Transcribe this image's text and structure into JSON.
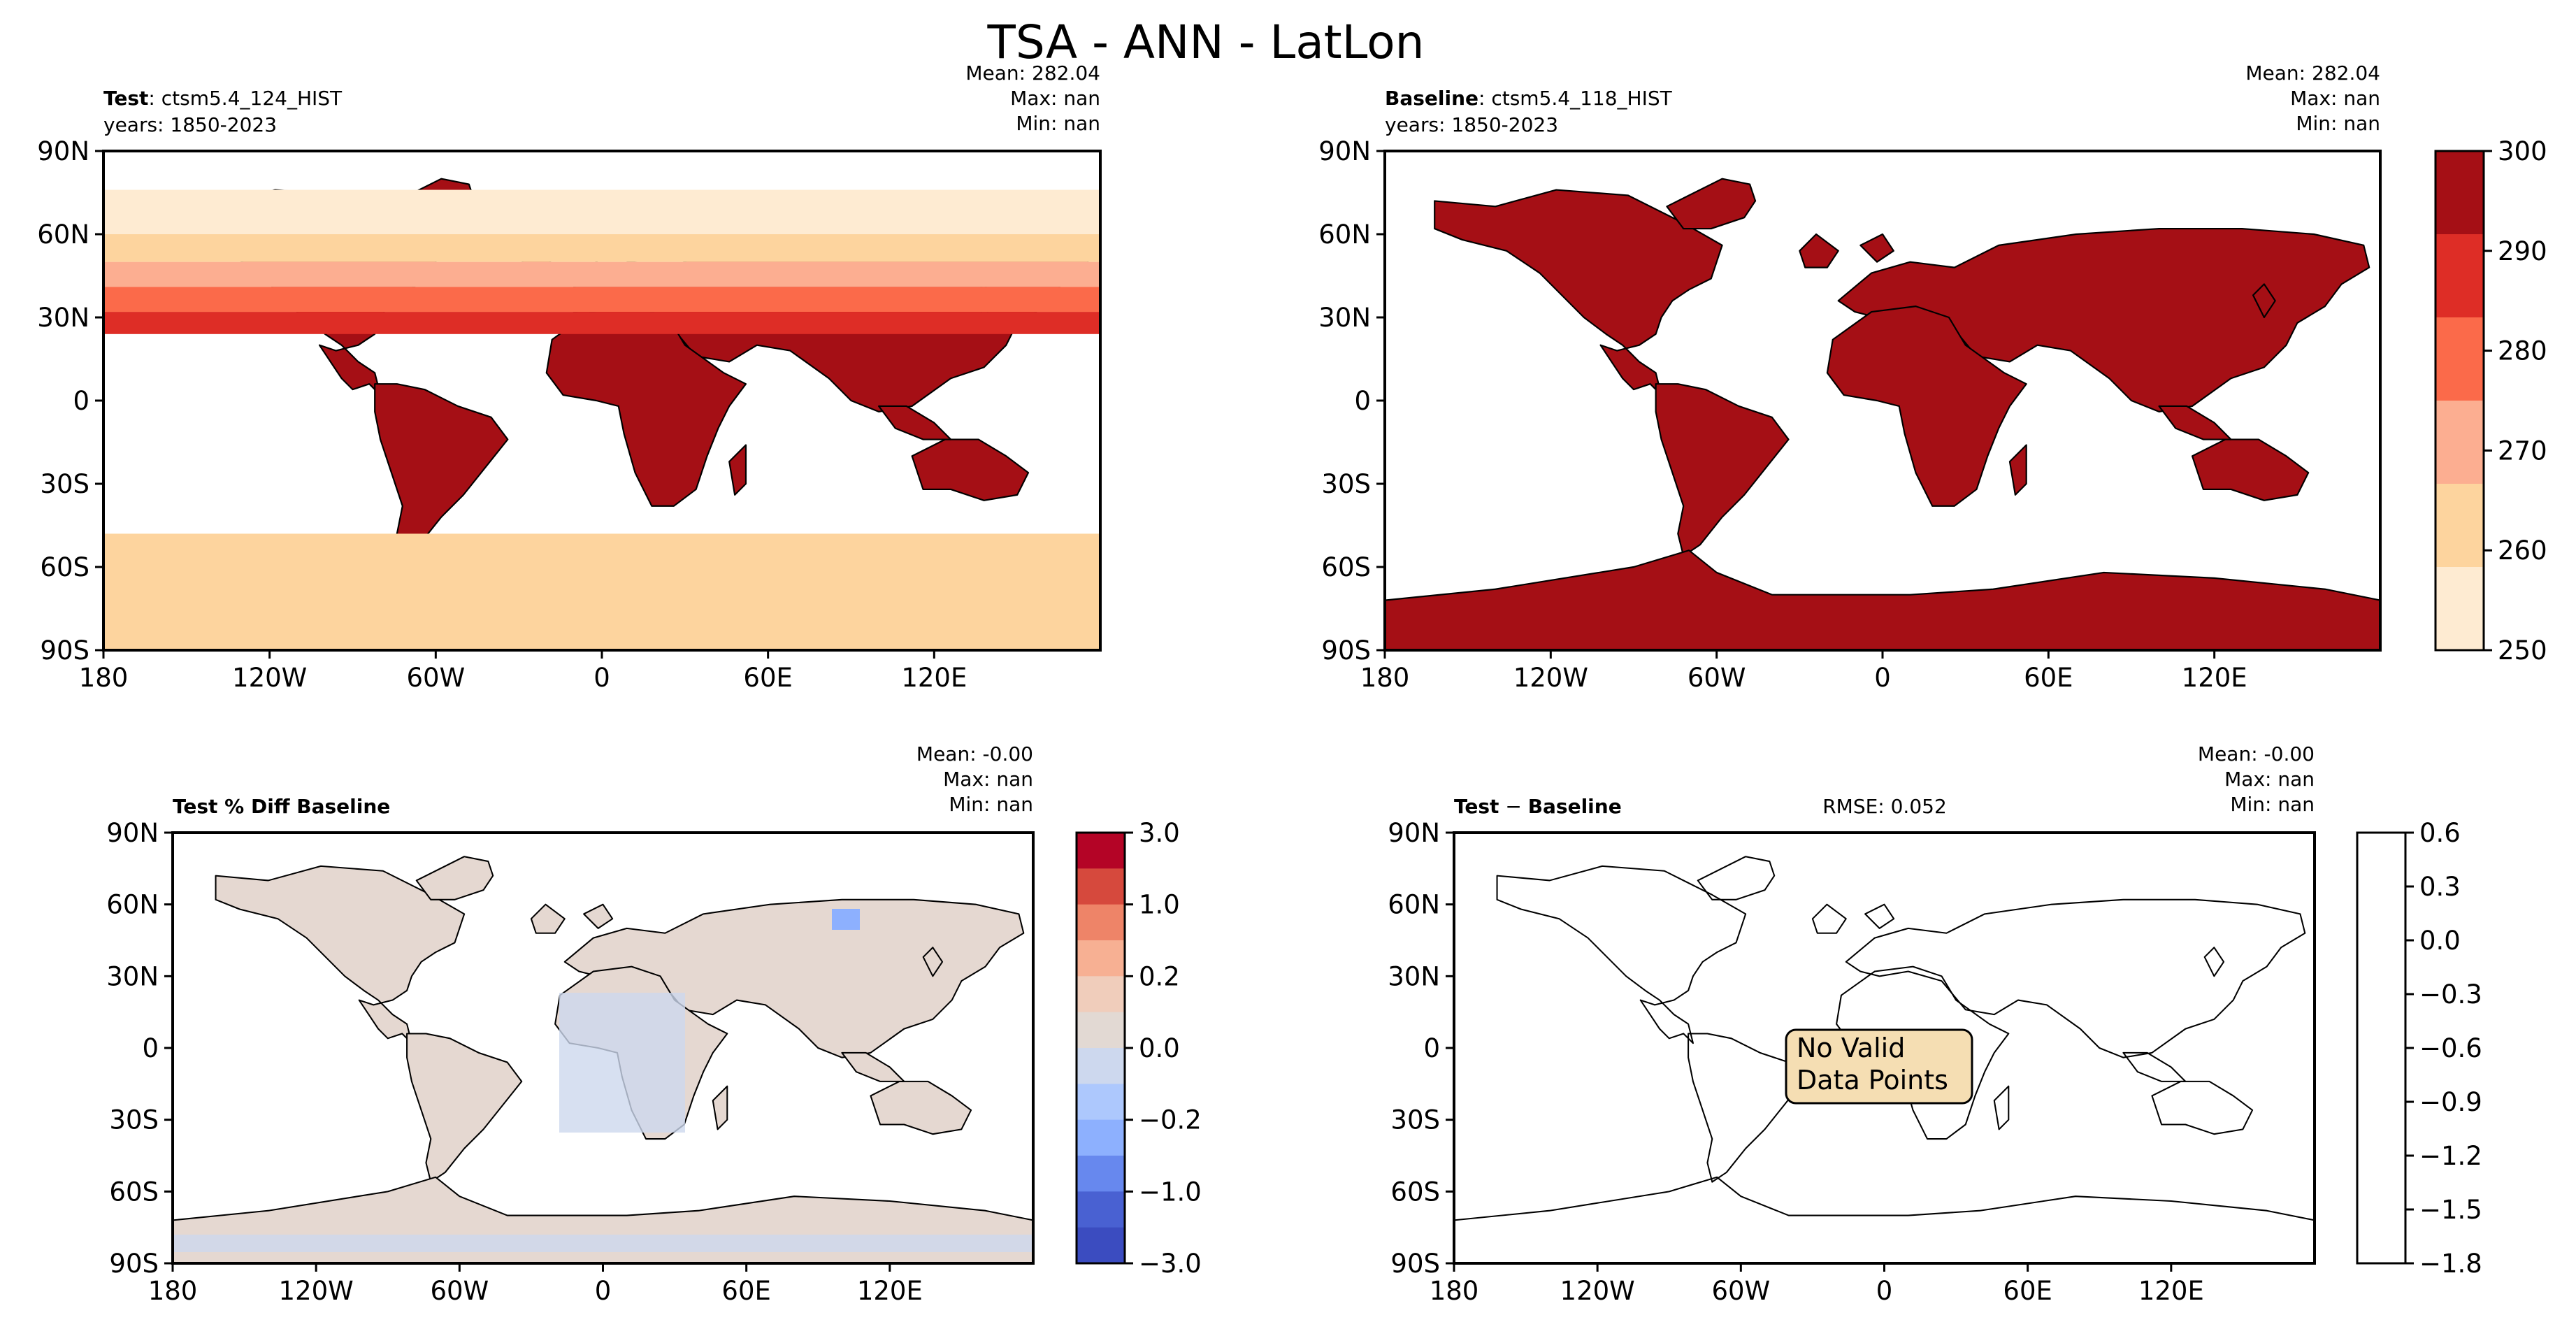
{
  "figure": {
    "suptitle": "TSA - ANN - LatLon"
  },
  "axes": {
    "lat_labels": [
      "90N",
      "60N",
      "30N",
      "0",
      "30S",
      "60S",
      "90S"
    ],
    "lon_labels": [
      "180",
      "120W",
      "60W",
      "0",
      "60E",
      "120E"
    ]
  },
  "panels": {
    "test": {
      "label_bold": "Test",
      "label_rest": ": ctsm5.4_124_HIST",
      "years": "years: 1850-2023",
      "stats": [
        "Mean: 282.04",
        "Max:   nan",
        "Min:   nan"
      ]
    },
    "baseline": {
      "label_bold": "Baseline",
      "label_rest": ": ctsm5.4_118_HIST",
      "years": "years: 1850-2023",
      "stats": [
        "Mean: 282.04",
        "Max:   nan",
        "Min:   nan"
      ]
    },
    "pctdiff": {
      "label_bold": "Test % Diff Baseline",
      "stats": [
        "Mean: -0.00",
        "Max:   nan",
        "Min:   nan"
      ]
    },
    "diff": {
      "label_bold": "Test",
      "label_op": " − ",
      "label_bold2": "Baseline",
      "rmse": "RMSE: 0.052",
      "stats": [
        "Mean: -0.00",
        "Max:   nan",
        "Min:   nan"
      ],
      "no_data_line1": "No Valid",
      "no_data_line2": "Data Points"
    }
  },
  "colorbars": {
    "temperature": {
      "ticks": [
        "300",
        "290",
        "280",
        "270",
        "260",
        "250"
      ],
      "colors": [
        "#a50f15",
        "#de2d26",
        "#fb6a4a",
        "#fcae91",
        "#fdd49e",
        "#feebd2"
      ]
    },
    "pct_diff": {
      "ticks": [
        "3.0",
        "1.0",
        "0.2",
        "0.0",
        "−0.2",
        "−1.0",
        "−3.0"
      ],
      "colors": [
        "#b40426",
        "#d6493d",
        "#ee8468",
        "#f7b093",
        "#f0cdbb",
        "#e2d9d3",
        "#cdd8ee",
        "#adc8fd",
        "#8db0fe",
        "#6788ee",
        "#4961d2",
        "#3b4cc0"
      ]
    },
    "abs_diff": {
      "ticks": [
        "0.6",
        "0.3",
        "0.0",
        "−0.3",
        "−0.6",
        "−0.9",
        "−1.2",
        "−1.5",
        "−1.8"
      ]
    }
  },
  "chart_data": [
    {
      "type": "heatmap",
      "title": "Test: ctsm5.4_124_HIST (years: 1850-2023)",
      "variable": "TSA",
      "summary": {
        "mean": 282.04,
        "max": "nan",
        "min": "nan"
      },
      "x_ticks": [
        "180",
        "120W",
        "60W",
        "0",
        "60E",
        "120E"
      ],
      "y_ticks": [
        "90N",
        "60N",
        "30N",
        "0",
        "30S",
        "60S",
        "90S"
      ],
      "colorbar": {
        "levels": [
          250,
          260,
          270,
          280,
          290,
          300
        ]
      }
    },
    {
      "type": "heatmap",
      "title": "Baseline: ctsm5.4_118_HIST (years: 1850-2023)",
      "variable": "TSA",
      "summary": {
        "mean": 282.04,
        "max": "nan",
        "min": "nan"
      },
      "x_ticks": [
        "180",
        "120W",
        "60W",
        "0",
        "60E",
        "120E"
      ],
      "y_ticks": [
        "90N",
        "60N",
        "30N",
        "0",
        "30S",
        "60S",
        "90S"
      ],
      "colorbar": {
        "levels": [
          250,
          260,
          270,
          280,
          290,
          300
        ]
      }
    },
    {
      "type": "heatmap",
      "title": "Test % Diff Baseline",
      "summary": {
        "mean": -0.0,
        "max": "nan",
        "min": "nan"
      },
      "x_ticks": [
        "180",
        "120W",
        "60W",
        "0",
        "60E",
        "120E"
      ],
      "y_ticks": [
        "90N",
        "60N",
        "30N",
        "0",
        "30S",
        "60S",
        "90S"
      ],
      "colorbar": {
        "levels": [
          -3.0,
          -1.0,
          -0.2,
          0.0,
          0.2,
          1.0,
          3.0
        ]
      }
    },
    {
      "type": "heatmap",
      "title": "Test − Baseline",
      "summary": {
        "mean": -0.0,
        "max": "nan",
        "min": "nan",
        "rmse": 0.052
      },
      "annotation": "No Valid Data Points",
      "x_ticks": [
        "180",
        "120W",
        "60W",
        "0",
        "60E",
        "120E"
      ],
      "y_ticks": [
        "90N",
        "60N",
        "30N",
        "0",
        "30S",
        "60S",
        "90S"
      ],
      "colorbar": {
        "levels": [
          -1.8,
          -1.5,
          -1.2,
          -0.9,
          -0.6,
          -0.3,
          0.0,
          0.3,
          0.6
        ]
      }
    }
  ]
}
